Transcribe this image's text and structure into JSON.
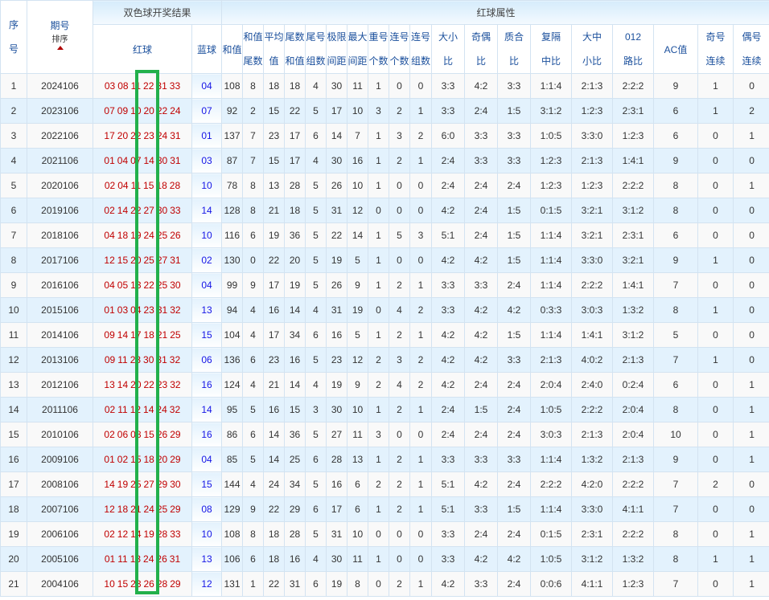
{
  "header": {
    "seq": [
      "序",
      "号"
    ],
    "period": "期号",
    "sort_label": "排序",
    "draw_group": "双色球开奖结果",
    "red_ball": "红球",
    "blue_ball": "蓝球",
    "attr_group": "红球属性",
    "attr_columns": [
      [
        "和值"
      ],
      [
        "和值",
        "尾数"
      ],
      [
        "平均",
        "值"
      ],
      [
        "尾数",
        "和值"
      ],
      [
        "尾号",
        "组数"
      ],
      [
        "极限",
        "间距"
      ],
      [
        "最大",
        "间距"
      ],
      [
        "重号",
        "个数"
      ],
      [
        "连号",
        "个数"
      ],
      [
        "连号",
        "组数"
      ],
      [
        "大小",
        "比"
      ],
      [
        "奇偶",
        "比"
      ],
      [
        "质合",
        "比"
      ],
      [
        "复隔",
        "中比"
      ],
      [
        "大中",
        "小比"
      ],
      [
        "012",
        "路比"
      ],
      [
        "AC值"
      ],
      [
        "奇号",
        "连续"
      ],
      [
        "偶号",
        "连续"
      ]
    ]
  },
  "colors": {
    "red_ball": "#c00000",
    "blue_ball": "#1515e6",
    "highlight_box": "#22b04b",
    "row_alt": "#e3f2fd"
  },
  "rows": [
    {
      "seq": "1",
      "period": "2024106",
      "red": [
        "03",
        "08",
        "11",
        "22",
        "31",
        "33"
      ],
      "blue": "04",
      "attrs": [
        "108",
        "8",
        "18",
        "18",
        "4",
        "30",
        "11",
        "1",
        "0",
        "0",
        "3:3",
        "4:2",
        "3:3",
        "1:1:4",
        "2:1:3",
        "2:2:2",
        "9",
        "1",
        "0"
      ]
    },
    {
      "seq": "2",
      "period": "2023106",
      "red": [
        "07",
        "09",
        "10",
        "20",
        "22",
        "24"
      ],
      "blue": "07",
      "attrs": [
        "92",
        "2",
        "15",
        "22",
        "5",
        "17",
        "10",
        "3",
        "2",
        "1",
        "3:3",
        "2:4",
        "1:5",
        "3:1:2",
        "1:2:3",
        "2:3:1",
        "6",
        "1",
        "2"
      ]
    },
    {
      "seq": "3",
      "period": "2022106",
      "red": [
        "17",
        "20",
        "22",
        "23",
        "24",
        "31"
      ],
      "blue": "01",
      "attrs": [
        "137",
        "7",
        "23",
        "17",
        "6",
        "14",
        "7",
        "1",
        "3",
        "2",
        "6:0",
        "3:3",
        "3:3",
        "1:0:5",
        "3:3:0",
        "1:2:3",
        "6",
        "0",
        "1"
      ]
    },
    {
      "seq": "4",
      "period": "2021106",
      "red": [
        "01",
        "04",
        "07",
        "14",
        "30",
        "31"
      ],
      "blue": "03",
      "attrs": [
        "87",
        "7",
        "15",
        "17",
        "4",
        "30",
        "16",
        "1",
        "2",
        "1",
        "2:4",
        "3:3",
        "3:3",
        "1:2:3",
        "2:1:3",
        "1:4:1",
        "9",
        "0",
        "0"
      ]
    },
    {
      "seq": "5",
      "period": "2020106",
      "red": [
        "02",
        "04",
        "11",
        "15",
        "18",
        "28"
      ],
      "blue": "10",
      "attrs": [
        "78",
        "8",
        "13",
        "28",
        "5",
        "26",
        "10",
        "1",
        "0",
        "0",
        "2:4",
        "2:4",
        "2:4",
        "1:2:3",
        "1:2:3",
        "2:2:2",
        "8",
        "0",
        "1"
      ]
    },
    {
      "seq": "6",
      "period": "2019106",
      "red": [
        "02",
        "14",
        "22",
        "27",
        "30",
        "33"
      ],
      "blue": "14",
      "attrs": [
        "128",
        "8",
        "21",
        "18",
        "5",
        "31",
        "12",
        "0",
        "0",
        "0",
        "4:2",
        "2:4",
        "1:5",
        "0:1:5",
        "3:2:1",
        "3:1:2",
        "8",
        "0",
        "0"
      ]
    },
    {
      "seq": "7",
      "period": "2018106",
      "red": [
        "04",
        "18",
        "19",
        "24",
        "25",
        "26"
      ],
      "blue": "10",
      "attrs": [
        "116",
        "6",
        "19",
        "36",
        "5",
        "22",
        "14",
        "1",
        "5",
        "3",
        "5:1",
        "2:4",
        "1:5",
        "1:1:4",
        "3:2:1",
        "2:3:1",
        "6",
        "0",
        "0"
      ]
    },
    {
      "seq": "8",
      "period": "2017106",
      "red": [
        "12",
        "15",
        "20",
        "25",
        "27",
        "31"
      ],
      "blue": "02",
      "attrs": [
        "130",
        "0",
        "22",
        "20",
        "5",
        "19",
        "5",
        "1",
        "0",
        "0",
        "4:2",
        "4:2",
        "1:5",
        "1:1:4",
        "3:3:0",
        "3:2:1",
        "9",
        "1",
        "0"
      ]
    },
    {
      "seq": "9",
      "period": "2016106",
      "red": [
        "04",
        "05",
        "13",
        "22",
        "25",
        "30"
      ],
      "blue": "04",
      "attrs": [
        "99",
        "9",
        "17",
        "19",
        "5",
        "26",
        "9",
        "1",
        "2",
        "1",
        "3:3",
        "3:3",
        "2:4",
        "1:1:4",
        "2:2:2",
        "1:4:1",
        "7",
        "0",
        "0"
      ]
    },
    {
      "seq": "10",
      "period": "2015106",
      "red": [
        "01",
        "03",
        "04",
        "23",
        "31",
        "32"
      ],
      "blue": "13",
      "attrs": [
        "94",
        "4",
        "16",
        "14",
        "4",
        "31",
        "19",
        "0",
        "4",
        "2",
        "3:3",
        "4:2",
        "4:2",
        "0:3:3",
        "3:0:3",
        "1:3:2",
        "8",
        "1",
        "0"
      ]
    },
    {
      "seq": "11",
      "period": "2014106",
      "red": [
        "09",
        "14",
        "17",
        "18",
        "21",
        "25"
      ],
      "blue": "15",
      "attrs": [
        "104",
        "4",
        "17",
        "34",
        "6",
        "16",
        "5",
        "1",
        "2",
        "1",
        "4:2",
        "4:2",
        "1:5",
        "1:1:4",
        "1:4:1",
        "3:1:2",
        "5",
        "0",
        "0"
      ]
    },
    {
      "seq": "12",
      "period": "2013106",
      "red": [
        "09",
        "11",
        "23",
        "30",
        "31",
        "32"
      ],
      "blue": "06",
      "attrs": [
        "136",
        "6",
        "23",
        "16",
        "5",
        "23",
        "12",
        "2",
        "3",
        "2",
        "4:2",
        "4:2",
        "3:3",
        "2:1:3",
        "4:0:2",
        "2:1:3",
        "7",
        "1",
        "0"
      ]
    },
    {
      "seq": "13",
      "period": "2012106",
      "red": [
        "13",
        "14",
        "20",
        "22",
        "23",
        "32"
      ],
      "blue": "16",
      "attrs": [
        "124",
        "4",
        "21",
        "14",
        "4",
        "19",
        "9",
        "2",
        "4",
        "2",
        "4:2",
        "2:4",
        "2:4",
        "2:0:4",
        "2:4:0",
        "0:2:4",
        "6",
        "0",
        "1"
      ]
    },
    {
      "seq": "14",
      "period": "2011106",
      "red": [
        "02",
        "11",
        "12",
        "14",
        "24",
        "32"
      ],
      "blue": "14",
      "attrs": [
        "95",
        "5",
        "16",
        "15",
        "3",
        "30",
        "10",
        "1",
        "2",
        "1",
        "2:4",
        "1:5",
        "2:4",
        "1:0:5",
        "2:2:2",
        "2:0:4",
        "8",
        "0",
        "1"
      ]
    },
    {
      "seq": "15",
      "period": "2010106",
      "red": [
        "02",
        "06",
        "08",
        "15",
        "26",
        "29"
      ],
      "blue": "16",
      "attrs": [
        "86",
        "6",
        "14",
        "36",
        "5",
        "27",
        "11",
        "3",
        "0",
        "0",
        "2:4",
        "2:4",
        "2:4",
        "3:0:3",
        "2:1:3",
        "2:0:4",
        "10",
        "0",
        "1"
      ]
    },
    {
      "seq": "16",
      "period": "2009106",
      "red": [
        "01",
        "02",
        "15",
        "18",
        "20",
        "29"
      ],
      "blue": "04",
      "attrs": [
        "85",
        "5",
        "14",
        "25",
        "6",
        "28",
        "13",
        "1",
        "2",
        "1",
        "3:3",
        "3:3",
        "3:3",
        "1:1:4",
        "1:3:2",
        "2:1:3",
        "9",
        "0",
        "1"
      ]
    },
    {
      "seq": "17",
      "period": "2008106",
      "red": [
        "14",
        "19",
        "25",
        "27",
        "29",
        "30"
      ],
      "blue": "15",
      "attrs": [
        "144",
        "4",
        "24",
        "34",
        "5",
        "16",
        "6",
        "2",
        "2",
        "1",
        "5:1",
        "4:2",
        "2:4",
        "2:2:2",
        "4:2:0",
        "2:2:2",
        "7",
        "2",
        "0"
      ]
    },
    {
      "seq": "18",
      "period": "2007106",
      "red": [
        "12",
        "18",
        "21",
        "24",
        "25",
        "29"
      ],
      "blue": "08",
      "attrs": [
        "129",
        "9",
        "22",
        "29",
        "6",
        "17",
        "6",
        "1",
        "2",
        "1",
        "5:1",
        "3:3",
        "1:5",
        "1:1:4",
        "3:3:0",
        "4:1:1",
        "7",
        "0",
        "0"
      ]
    },
    {
      "seq": "19",
      "period": "2006106",
      "red": [
        "02",
        "12",
        "14",
        "19",
        "28",
        "33"
      ],
      "blue": "10",
      "attrs": [
        "108",
        "8",
        "18",
        "28",
        "5",
        "31",
        "10",
        "0",
        "0",
        "0",
        "3:3",
        "2:4",
        "2:4",
        "0:1:5",
        "2:3:1",
        "2:2:2",
        "8",
        "0",
        "1"
      ]
    },
    {
      "seq": "20",
      "period": "2005106",
      "red": [
        "01",
        "11",
        "13",
        "24",
        "26",
        "31"
      ],
      "blue": "13",
      "attrs": [
        "106",
        "6",
        "18",
        "16",
        "4",
        "30",
        "11",
        "1",
        "0",
        "0",
        "3:3",
        "4:2",
        "4:2",
        "1:0:5",
        "3:1:2",
        "1:3:2",
        "8",
        "1",
        "1"
      ]
    },
    {
      "seq": "21",
      "period": "2004106",
      "red": [
        "10",
        "15",
        "23",
        "26",
        "28",
        "29"
      ],
      "blue": "12",
      "attrs": [
        "131",
        "1",
        "22",
        "31",
        "6",
        "19",
        "8",
        "0",
        "2",
        "1",
        "4:2",
        "3:3",
        "2:4",
        "0:0:6",
        "4:1:1",
        "1:2:3",
        "7",
        "0",
        "1"
      ]
    }
  ]
}
